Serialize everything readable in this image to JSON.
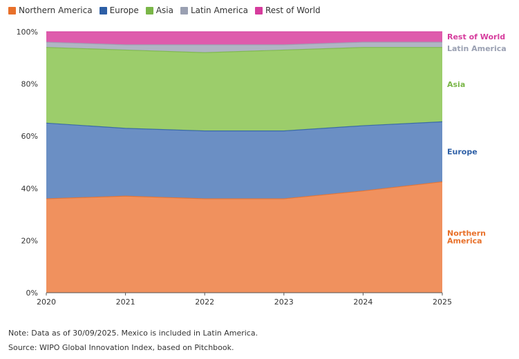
{
  "chart_data": {
    "type": "area",
    "stacked": true,
    "normalized_percent": true,
    "title": "",
    "xlabel": "",
    "ylabel": "",
    "x": [
      "2020",
      "2021",
      "2022",
      "2023",
      "2024",
      "2025"
    ],
    "ylim": [
      0,
      100
    ],
    "yticks": [
      "0%",
      "20%",
      "40%",
      "60%",
      "80%",
      "100%"
    ],
    "series": [
      {
        "name": "Northern America",
        "end_label": [
          "Northern",
          "America"
        ],
        "color": "#f0915e",
        "legend_color": "#e8702a",
        "label_color": "#e8702a",
        "values": [
          36,
          37,
          36,
          36,
          39,
          42.5
        ]
      },
      {
        "name": "Europe",
        "end_label": [
          "Europe"
        ],
        "color": "#6b8fc4",
        "legend_color": "#2d5fa6",
        "label_color": "#2d5fa6",
        "values": [
          29,
          26,
          26,
          26,
          25,
          23
        ]
      },
      {
        "name": "Asia",
        "end_label": [
          "Asia"
        ],
        "color": "#9ccd6b",
        "legend_color": "#7ab648",
        "label_color": "#7ab648",
        "values": [
          29,
          30,
          30,
          31,
          30,
          28.5
        ]
      },
      {
        "name": "Latin America",
        "end_label": [
          "Latin America"
        ],
        "color": "#b0b5c4",
        "legend_color": "#9aa0b2",
        "label_color": "#9aa0b2",
        "values": [
          2,
          2,
          3,
          2,
          2,
          2
        ]
      },
      {
        "name": "Rest of World",
        "end_label": [
          "Rest of World"
        ],
        "color": "#de5cac",
        "legend_color": "#d63c9d",
        "label_color": "#d63c9d",
        "values": [
          4,
          5,
          5,
          5,
          4,
          4
        ]
      }
    ]
  },
  "footer": {
    "note": "Note: Data as of 30/09/2025. Mexico is included in Latin America.",
    "source": "Source: WIPO Global Innovation Index, based on Pitchbook."
  }
}
